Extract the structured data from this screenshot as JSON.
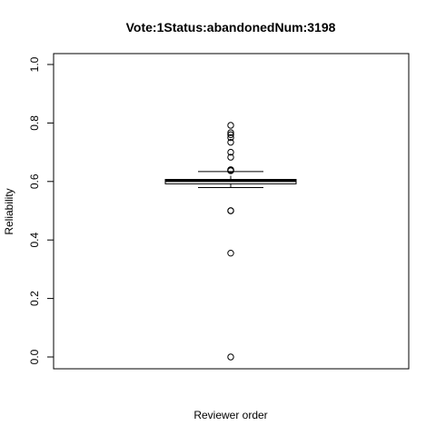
{
  "chart_data": {
    "type": "boxplot",
    "title": "Vote:1Status:abandonedNum:3198",
    "xlabel": "Reviewer order",
    "ylabel": "Reliability",
    "ylim": [
      0.0,
      1.0
    ],
    "yticks": [
      0.0,
      0.2,
      0.4,
      0.6,
      0.8,
      1.0
    ],
    "ytick_labels": [
      "0.0",
      "0.2",
      "0.4",
      "0.6",
      "0.8",
      "1.0"
    ],
    "grid": false,
    "box": {
      "whisker_low": 0.579,
      "q1": 0.592,
      "median": 0.603,
      "q3": 0.607,
      "whisker_high": 0.634
    },
    "outliers": [
      0.0,
      0.355,
      0.5,
      0.5,
      0.637,
      0.637,
      0.64,
      0.64,
      0.683,
      0.7,
      0.734,
      0.75,
      0.76,
      0.767,
      0.792
    ],
    "colors": {
      "stroke": "#000000",
      "background": "#ffffff"
    }
  }
}
